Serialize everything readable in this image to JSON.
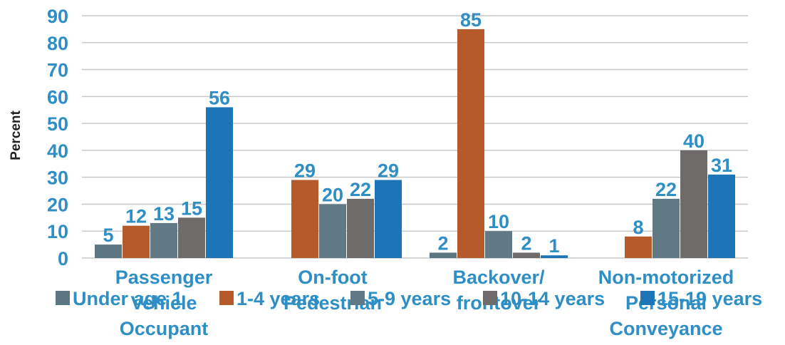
{
  "chart_data": {
    "type": "bar",
    "ylabel": "Percent",
    "xlabel": "",
    "ylim": [
      0,
      90
    ],
    "yticks": [
      0,
      10,
      20,
      30,
      40,
      50,
      60,
      70,
      80,
      90
    ],
    "grid": true,
    "legend_position": "bottom",
    "categories": [
      [
        "Passenger",
        "Vehicle",
        "Occupant"
      ],
      [
        "On-foot",
        "Pedestrian"
      ],
      [
        "Backover/",
        "frontover"
      ],
      [
        "Non-motorized",
        "Personal",
        "Conveyance"
      ]
    ],
    "series": [
      {
        "name": "Under age 1",
        "color": "#5b7583",
        "values": [
          5,
          null,
          2,
          null
        ]
      },
      {
        "name": "1-4 years",
        "color": "#b55a2a",
        "values": [
          12,
          29,
          85,
          8
        ]
      },
      {
        "name": "5-9 years",
        "color": "#617985",
        "values": [
          13,
          20,
          10,
          22
        ]
      },
      {
        "name": "10-14 years",
        "color": "#6f6b6b",
        "values": [
          15,
          22,
          2,
          40
        ]
      },
      {
        "name": "15-19 years",
        "color": "#1d74b6",
        "values": [
          56,
          29,
          1,
          31
        ]
      }
    ],
    "label_color": "#2f8fc4"
  }
}
